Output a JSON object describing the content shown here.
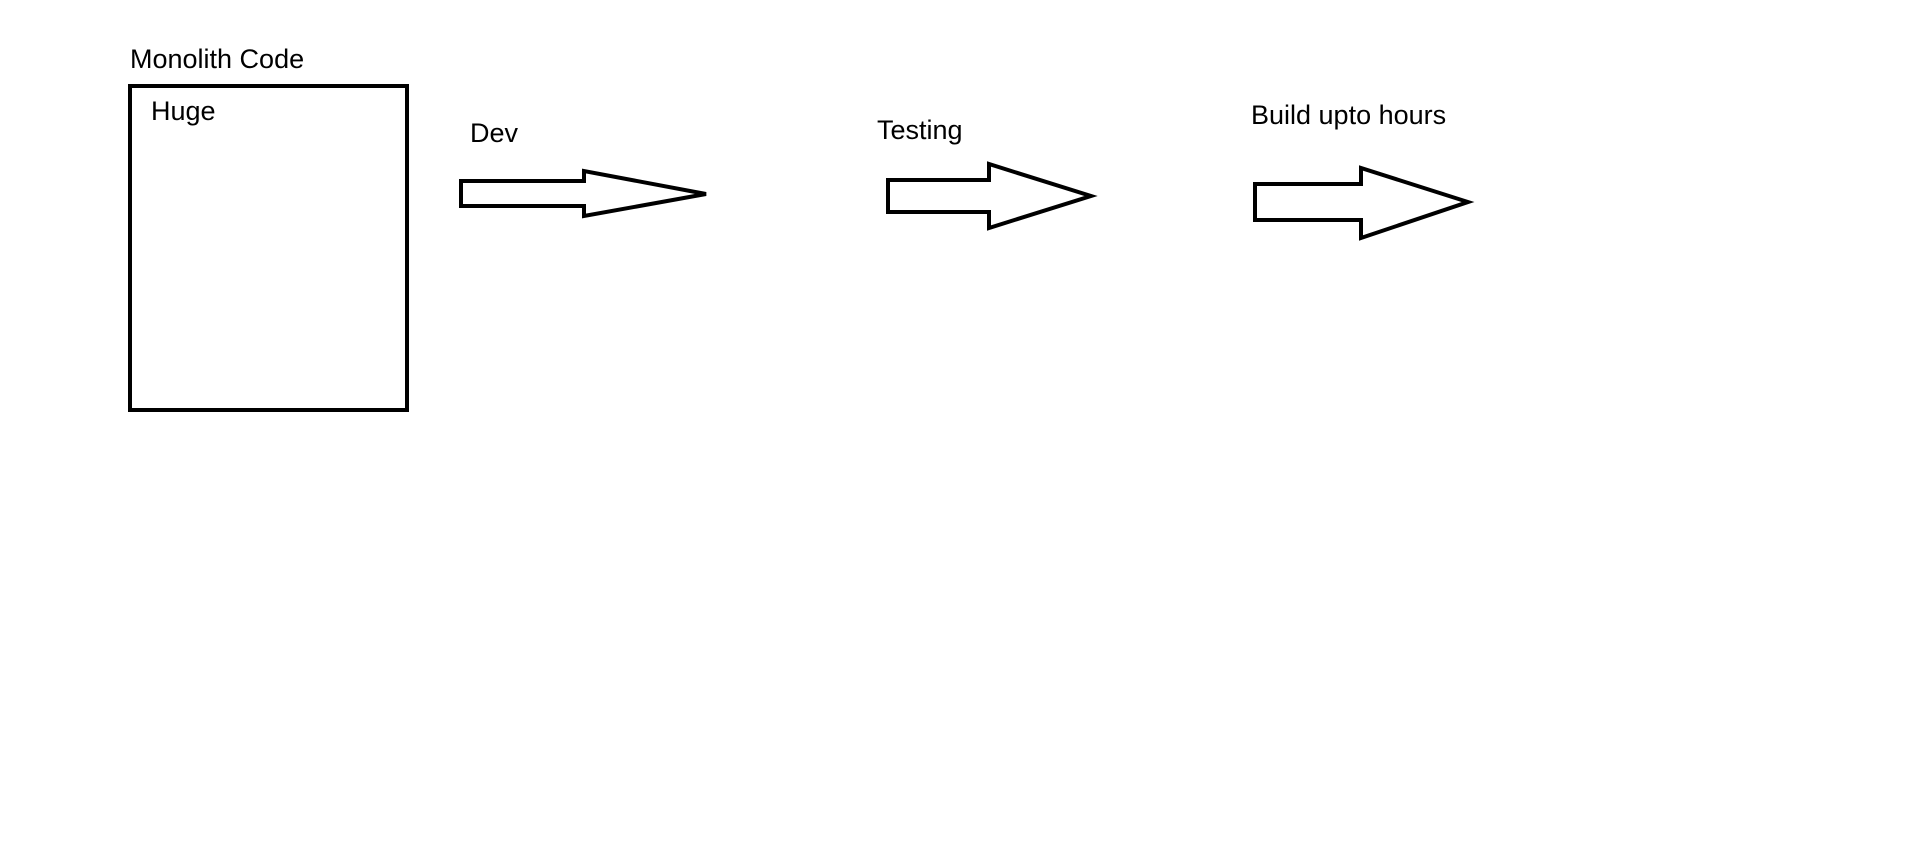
{
  "diagram": {
    "box": {
      "title": "Monolith Code",
      "inner_label": "Huge"
    },
    "steps": [
      {
        "label": "Dev"
      },
      {
        "label": "Testing"
      },
      {
        "label": "Build upto hours"
      }
    ],
    "colors": {
      "stroke": "#000000",
      "background": "#ffffff"
    }
  }
}
